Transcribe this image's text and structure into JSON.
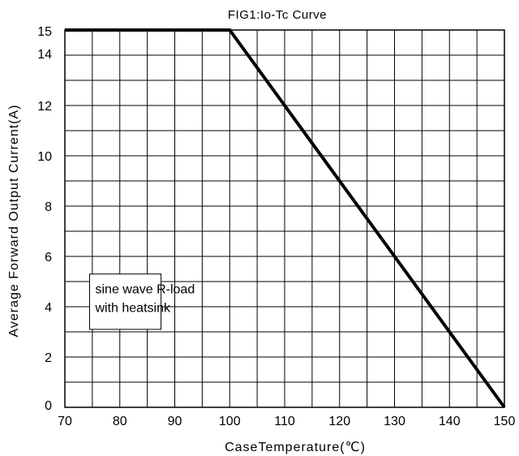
{
  "chart_data": {
    "type": "line",
    "title": "FIG1:Io-Tc Curve",
    "xlabel": "CaseTemperature(℃)",
    "ylabel": "Average Forward Output Current(A)",
    "xlim": [
      70,
      150
    ],
    "ylim": [
      0,
      15
    ],
    "x_ticks": [
      70,
      80,
      90,
      100,
      110,
      120,
      130,
      140,
      150
    ],
    "y_ticks": [
      0,
      2,
      4,
      6,
      8,
      10,
      12,
      14,
      15
    ],
    "grid": true,
    "series": [
      {
        "x": [
          70,
          100,
          150
        ],
        "y": [
          15,
          15,
          0
        ]
      }
    ],
    "annotation": {
      "lines": [
        "sine wave R-load",
        "with heatsink"
      ]
    }
  }
}
